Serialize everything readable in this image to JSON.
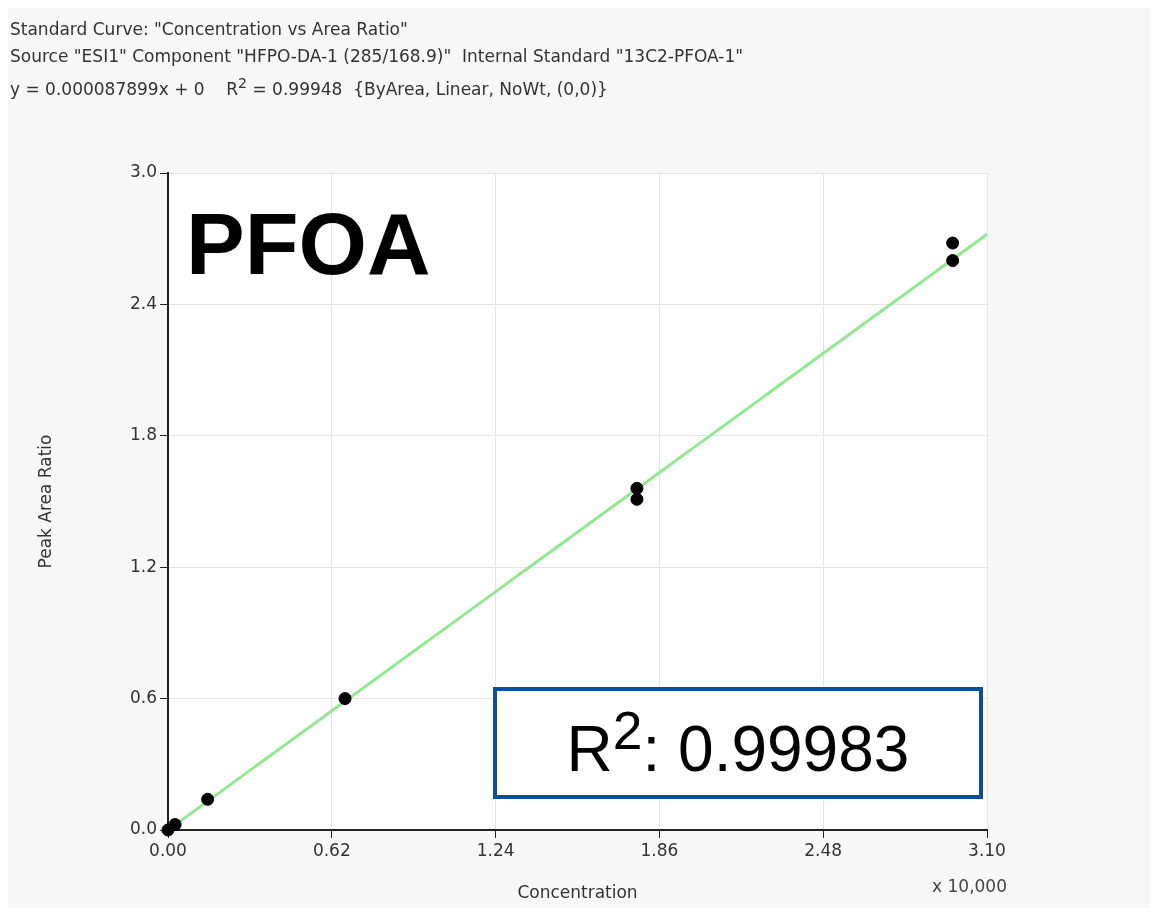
{
  "chart_data": {
    "type": "scatter",
    "title": "Standard Curve: \"Concentration vs Area Ratio\"",
    "subtitle": "Source \"ESI1\" Component \"HFPO-DA-1 (285/168.9)\"  Internal Standard \"13C2-PFOA-1\"",
    "xlabel": "Concentration",
    "ylabel": "Peak Area Ratio",
    "annotations": [
      "y = 0.000087899x + 0    R$^{2}$ = 0.99948  {ByArea, Linear, NoWt, (0,0)}",
      "PFOA",
      "R$^{2}$: 0.99983",
      "x 10,000"
    ],
    "series": [
      {
        "color": "#000000",
        "marker": "circle",
        "x": [
          0,
          0.027,
          0.15,
          0.67,
          1.775,
          1.775,
          2.97,
          2.97
        ],
        "values": [
          0,
          0.025,
          0.14,
          0.6,
          1.51,
          1.56,
          2.6,
          2.68
        ]
      },
      {
        "type": "line",
        "color": "#90e890",
        "marker": "none",
        "x": [
          0,
          3.1
        ],
        "values": [
          0,
          2.72
        ]
      }
    ],
    "xlim": [
      0,
      3.1
    ],
    "xticks": [
      {
        "value": 0,
        "label": "0.00"
      },
      0.62,
      1.24,
      1.86,
      2.48,
      {
        "value": 3.1,
        "label": "3.10"
      }
    ],
    "ylim": [
      0,
      3
    ],
    "yticks": [
      {
        "value": 0,
        "label": "0.0"
      },
      0.6,
      1.2,
      1.8,
      2.4,
      {
        "value": 3,
        "label": "3.0"
      }
    ],
    "grid": true,
    "legend": false
  }
}
